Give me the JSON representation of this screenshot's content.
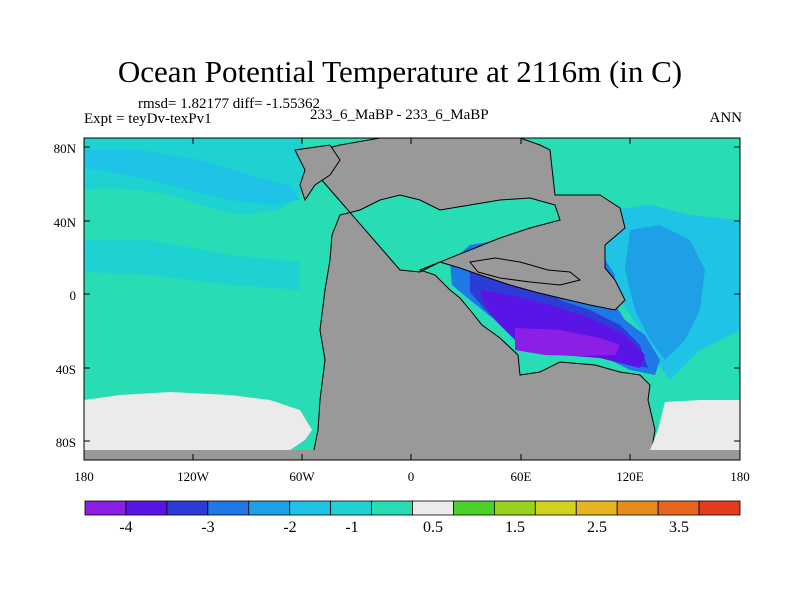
{
  "title": "Ocean Potential Temperature at 2116m (in C)",
  "rmsd_line": "rmsd= 1.82177 diff= -1.55362",
  "expt_line": "Expt = teyDv-texPv1",
  "comparison": "233_6_MaBP - 233_6_MaBP",
  "season": "ANN",
  "lat_labels": [
    "80N",
    "40N",
    "0",
    "40S",
    "80S"
  ],
  "lon_labels": [
    "180",
    "120W",
    "60W",
    "0",
    "60E",
    "120E",
    "180"
  ],
  "colorbar": {
    "colors": [
      "#8c1ee6",
      "#5a14e6",
      "#2d3cd7",
      "#1e78e6",
      "#1ea0e6",
      "#1ec3e6",
      "#1ed2d2",
      "#28dcb4",
      "#ebebeb",
      "#4bd228",
      "#96d21e",
      "#d2d21e",
      "#e6b41e",
      "#e68c1e",
      "#e6641e",
      "#e63c1e"
    ],
    "labels": [
      "-4",
      "-3",
      "-2",
      "-1",
      "0.5",
      "1.5",
      "2.5",
      "3.5"
    ]
  },
  "colors": {
    "land": "#999999",
    "background": "#28dcb4",
    "ice": "#ebebeb"
  }
}
